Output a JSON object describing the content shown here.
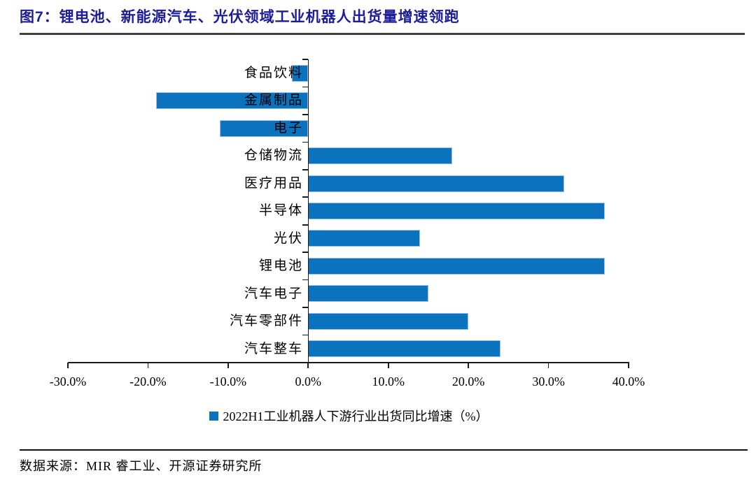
{
  "header": {
    "title": "图7：锂电池、新能源汽车、光伏领域工业机器人出货量增速领跑"
  },
  "chart_data": {
    "type": "bar",
    "orientation": "horizontal",
    "title": "",
    "xlabel": "",
    "ylabel": "",
    "categories": [
      "食品饮料",
      "金属制品",
      "电子",
      "仓储物流",
      "医疗用品",
      "半导体",
      "光伏",
      "锂电池",
      "汽车电子",
      "汽车零部件",
      "汽车整车"
    ],
    "values": [
      -2,
      -19,
      -11,
      18,
      32,
      37,
      14,
      37,
      15,
      20,
      24
    ],
    "unit": "%",
    "xlim": [
      -30,
      40
    ],
    "xticks": [
      -30,
      -20,
      -10,
      0,
      10,
      20,
      30,
      40
    ],
    "xtick_labels": [
      "-30.0%",
      "-20.0%",
      "-10.0%",
      "0.0%",
      "10.0%",
      "20.0%",
      "30.0%",
      "40.0%"
    ],
    "grid": false,
    "legend_position": "bottom",
    "legend": [
      "2022H1工业机器人下游行业出货同比增速（%）"
    ],
    "bar_color": "#0b72be",
    "bar_border_color": "#9cc2e5"
  },
  "legend": {
    "label": "2022H1工业机器人下游行业出货同比增速（%）"
  },
  "footer": {
    "source": "数据来源：MIR 睿工业、开源证券研究所"
  },
  "colors": {
    "title_text": "#1c1c99",
    "axis": "#1a1a1a",
    "bar": "#0b72be"
  }
}
